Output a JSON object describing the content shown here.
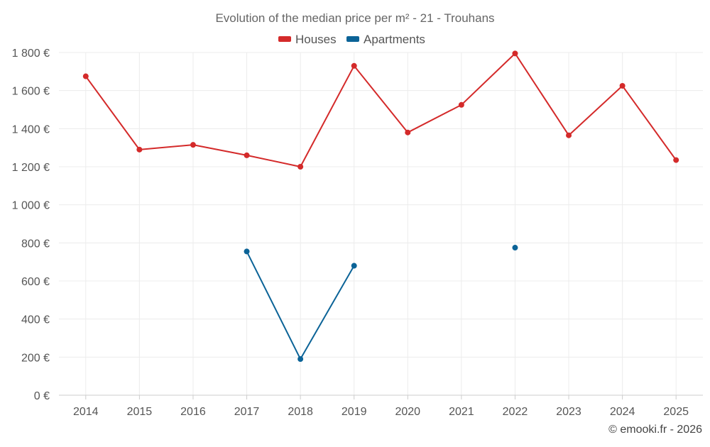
{
  "chart_data": {
    "type": "line",
    "title": "Evolution of the median price per m² - 21 - Trouhans",
    "categories": [
      "2014",
      "2015",
      "2016",
      "2017",
      "2018",
      "2019",
      "2020",
      "2021",
      "2022",
      "2023",
      "2024",
      "2025"
    ],
    "y_ticks": [
      0,
      200,
      400,
      600,
      800,
      1000,
      1200,
      1400,
      1600,
      1800
    ],
    "y_tick_labels": [
      "0 €",
      "200 €",
      "400 €",
      "600 €",
      "800 €",
      "1 000 €",
      "1 200 €",
      "1 400 €",
      "1 600 €",
      "1 800 €"
    ],
    "ylim": [
      0,
      1800
    ],
    "grid": true,
    "legend_position": "top",
    "series": [
      {
        "name": "Houses",
        "color": "#d42a2a",
        "values": [
          1675,
          1290,
          1315,
          1260,
          1200,
          1730,
          1380,
          1525,
          1795,
          1365,
          1625,
          1235
        ]
      },
      {
        "name": "Apartments",
        "color": "#0b6397",
        "values": [
          null,
          null,
          null,
          755,
          190,
          680,
          null,
          null,
          775,
          null,
          null,
          null
        ]
      }
    ],
    "credit": "© emooki.fr - 2026"
  }
}
